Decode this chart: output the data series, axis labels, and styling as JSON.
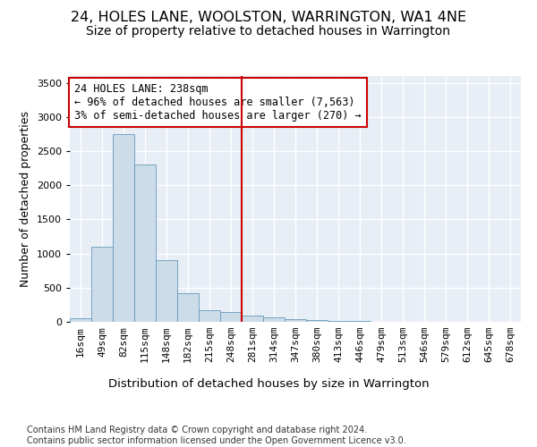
{
  "title": "24, HOLES LANE, WOOLSTON, WARRINGTON, WA1 4NE",
  "subtitle": "Size of property relative to detached houses in Warrington",
  "dist_label": "Distribution of detached houses by size in Warrington",
  "ylabel": "Number of detached properties",
  "bar_labels": [
    "16sqm",
    "49sqm",
    "82sqm",
    "115sqm",
    "148sqm",
    "182sqm",
    "215sqm",
    "248sqm",
    "281sqm",
    "314sqm",
    "347sqm",
    "380sqm",
    "413sqm",
    "446sqm",
    "479sqm",
    "513sqm",
    "546sqm",
    "579sqm",
    "612sqm",
    "645sqm",
    "678sqm"
  ],
  "bar_values": [
    50,
    1100,
    2750,
    2300,
    900,
    420,
    165,
    150,
    90,
    60,
    45,
    30,
    15,
    10,
    5,
    3,
    2,
    1,
    1,
    0,
    0
  ],
  "bar_color": "#ccdce8",
  "bar_edge_color": "#6699bb",
  "vline_x": 7.5,
  "vline_color": "#cc0000",
  "annotation_text": "24 HOLES LANE: 238sqm\n← 96% of detached houses are smaller (7,563)\n3% of semi-detached houses are larger (270) →",
  "annotation_box_color": "#ffffff",
  "annotation_box_edge": "#cc0000",
  "ylim": [
    0,
    3600
  ],
  "yticks": [
    0,
    500,
    1000,
    1500,
    2000,
    2500,
    3000,
    3500
  ],
  "background_color": "#e8eef6",
  "grid_color": "#ffffff",
  "footer": "Contains HM Land Registry data © Crown copyright and database right 2024.\nContains public sector information licensed under the Open Government Licence v3.0.",
  "title_fontsize": 11.5,
  "subtitle_fontsize": 10,
  "dist_label_fontsize": 9.5,
  "ylabel_fontsize": 9,
  "tick_fontsize": 8,
  "annotation_fontsize": 8.5
}
